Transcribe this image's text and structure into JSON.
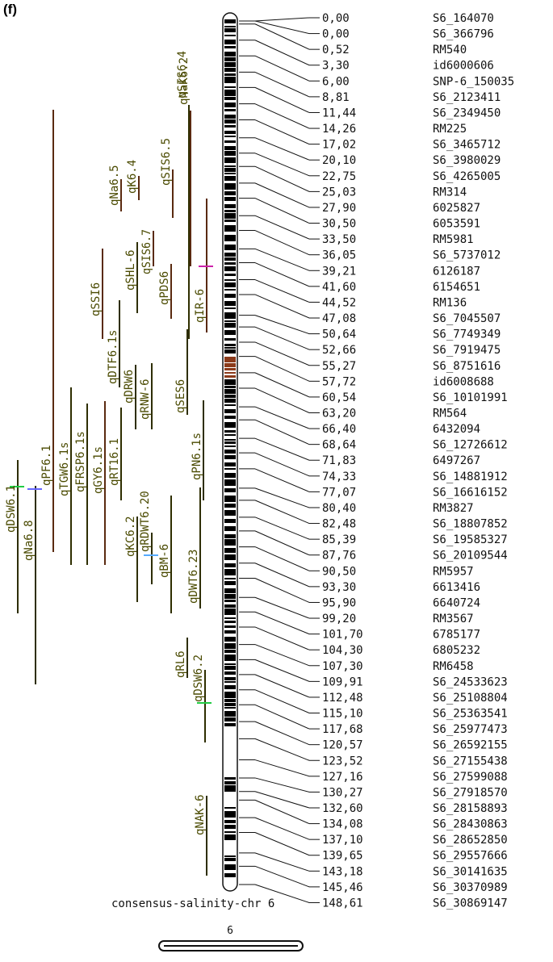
{
  "panel_label": "(f)",
  "chromosome": {
    "title": "consensus-salinity-chr 6",
    "number": "6"
  },
  "markers": [
    {
      "pos": "0,00",
      "name": "S6_164070"
    },
    {
      "pos": "0,00",
      "name": "S6_366796"
    },
    {
      "pos": "0,52",
      "name": "RM540"
    },
    {
      "pos": "3,30",
      "name": "id6000606"
    },
    {
      "pos": "6,00",
      "name": "SNP-6_150035"
    },
    {
      "pos": "8,81",
      "name": "S6_2123411"
    },
    {
      "pos": "11,44",
      "name": "S6_2349450"
    },
    {
      "pos": "14,26",
      "name": "RM225"
    },
    {
      "pos": "17,02",
      "name": "S6_3465712"
    },
    {
      "pos": "20,10",
      "name": "S6_3980029"
    },
    {
      "pos": "22,75",
      "name": "S6_4265005"
    },
    {
      "pos": "25,03",
      "name": "RM314"
    },
    {
      "pos": "27,90",
      "name": "6025827"
    },
    {
      "pos": "30,50",
      "name": "6053591"
    },
    {
      "pos": "33,50",
      "name": "RM5981"
    },
    {
      "pos": "36,05",
      "name": "S6_5737012"
    },
    {
      "pos": "39,21",
      "name": "6126187"
    },
    {
      "pos": "41,60",
      "name": "6154651"
    },
    {
      "pos": "44,52",
      "name": "RM136"
    },
    {
      "pos": "47,08",
      "name": "S6_7045507"
    },
    {
      "pos": "50,64",
      "name": "S6_7749349"
    },
    {
      "pos": "52,66",
      "name": "S6_7919475"
    },
    {
      "pos": "55,27",
      "name": "S6_8751616"
    },
    {
      "pos": "57,72",
      "name": "id6008688"
    },
    {
      "pos": "60,54",
      "name": "S6_10101991"
    },
    {
      "pos": "63,20",
      "name": "RM564"
    },
    {
      "pos": "66,40",
      "name": "6432094"
    },
    {
      "pos": "68,64",
      "name": "S6_12726612"
    },
    {
      "pos": "71,83",
      "name": "6497267"
    },
    {
      "pos": "74,33",
      "name": "S6_14881912"
    },
    {
      "pos": "77,07",
      "name": "S6_16616152"
    },
    {
      "pos": "80,40",
      "name": "RM3827"
    },
    {
      "pos": "82,48",
      "name": "S6_18807852"
    },
    {
      "pos": "85,39",
      "name": "S6_19585327"
    },
    {
      "pos": "87,76",
      "name": "S6_20109544"
    },
    {
      "pos": "90,50",
      "name": "RM5957"
    },
    {
      "pos": "93,30",
      "name": "6613416"
    },
    {
      "pos": "95,90",
      "name": "6640724"
    },
    {
      "pos": "99,20",
      "name": "RM3567"
    },
    {
      "pos": "101,70",
      "name": "6785177"
    },
    {
      "pos": "104,30",
      "name": "6805232"
    },
    {
      "pos": "107,30",
      "name": "RM6458"
    },
    {
      "pos": "109,91",
      "name": "S6_24533623"
    },
    {
      "pos": "112,48",
      "name": "S6_25108804"
    },
    {
      "pos": "115,10",
      "name": "S6_25363541"
    },
    {
      "pos": "117,68",
      "name": "S6_25977473"
    },
    {
      "pos": "120,57",
      "name": "S6_26592155"
    },
    {
      "pos": "123,52",
      "name": "S6_27155438"
    },
    {
      "pos": "127,16",
      "name": "S6_27599088"
    },
    {
      "pos": "130,27",
      "name": "S6_27918570"
    },
    {
      "pos": "132,60",
      "name": "S6_28158893"
    },
    {
      "pos": "134,08",
      "name": "S6_28430863"
    },
    {
      "pos": "137,10",
      "name": "S6_28652850"
    },
    {
      "pos": "139,65",
      "name": "S6_29557666"
    },
    {
      "pos": "143,18",
      "name": "S6_30141635"
    },
    {
      "pos": "145,46",
      "name": "S6_30370989"
    },
    {
      "pos": "148,61",
      "name": "S6_30869147"
    }
  ],
  "qtls": [
    {
      "name": "qDSW6.1",
      "color": "#2e2e00",
      "accent": "#22cc44"
    },
    {
      "name": "qNa6.8",
      "color": "#2e2e00",
      "accent": "#6666ff"
    },
    {
      "name": "qPF6.1",
      "color": "#5a2a10"
    },
    {
      "name": "qTGW6.1s",
      "color": "#2e2e00"
    },
    {
      "name": "qFRSP6.1s",
      "color": "#2e2e00"
    },
    {
      "name": "qGY6.1s",
      "color": "#5a2a10"
    },
    {
      "name": "qRT16.1",
      "color": "#2e2e00"
    },
    {
      "name": "qKC6.2",
      "color": "#2e2e00"
    },
    {
      "name": "qSSI6",
      "color": "#5a2a10"
    },
    {
      "name": "qDTF6.1s",
      "color": "#2e2e00"
    },
    {
      "name": "qNa6.5",
      "color": "#5a2a10"
    },
    {
      "name": "qK6.4",
      "color": "#5a2a10"
    },
    {
      "name": "qSHL-6",
      "color": "#2e2e00"
    },
    {
      "name": "qSIS6.7",
      "color": "#5a2a10"
    },
    {
      "name": "qDRW6",
      "color": "#2e2e00"
    },
    {
      "name": "qRNW-6",
      "color": "#2e2e00"
    },
    {
      "name": "qRDWT6.20",
      "color": "#2e2e00",
      "accent": "#55aaff"
    },
    {
      "name": "qBM-6",
      "color": "#2e2e00"
    },
    {
      "name": "qPDS6",
      "color": "#5a2a10"
    },
    {
      "name": "qSES6",
      "color": "#2e2e00"
    },
    {
      "name": "qSIS6.5",
      "color": "#5a2a10"
    },
    {
      "name": "qSIS6.4",
      "color": "#2e2e00"
    },
    {
      "name": "qNaK6.2",
      "color": "#5a2a10"
    },
    {
      "name": "qIR-6",
      "color": "#5a2a10",
      "accent": "#cc22aa"
    },
    {
      "name": "qDWT6.23",
      "color": "#2e2e00"
    },
    {
      "name": "qPN6.1s",
      "color": "#2e2e00"
    },
    {
      "name": "qRL6",
      "color": "#2e2e00"
    },
    {
      "name": "qDSW6.2",
      "color": "#2e2e00",
      "accent": "#22cc44"
    },
    {
      "name": "qNAK-6",
      "color": "#2e2e00"
    }
  ],
  "colors": {
    "band_dark": "#000000",
    "band_light": "#ffffff",
    "centromere": "#8b3a1a",
    "text": "#111111",
    "label_qtl": "#4a4a00"
  }
}
